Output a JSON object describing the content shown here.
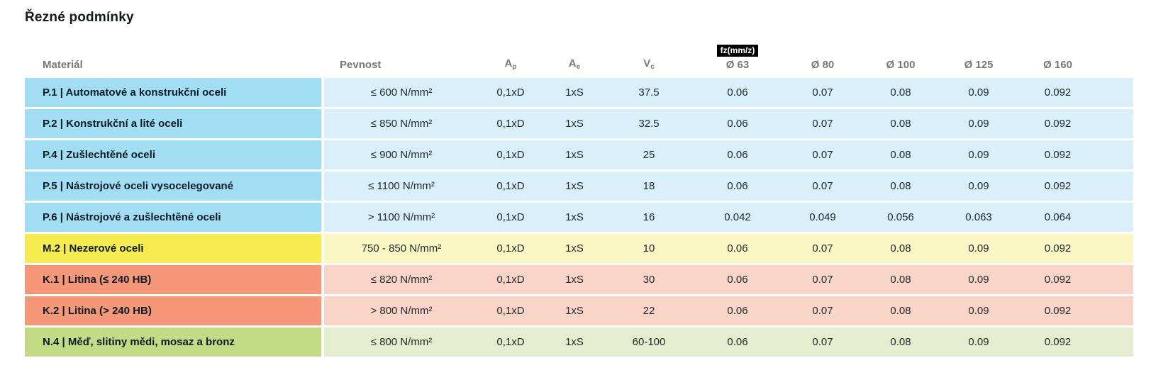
{
  "title": "Řezné podmínky",
  "colors": {
    "steel_label": "#A1DEF4",
    "steel_body": "#D9EFFA",
    "stainless_label": "#F6EC52",
    "stainless_body": "#FBF7C5",
    "cast_iron_label": "#F59779",
    "cast_iron_body": "#F9D5C8",
    "nonferrous_label": "#C1DC85",
    "nonferrous_body": "#E4EDCD",
    "header_text": "#75787B",
    "badge_background": "#000000",
    "badge_text": "#FFFFFF"
  },
  "chart_data": {
    "type": "table",
    "title": "Řezné podmínky",
    "columns": [
      "Materiál",
      "Pevnost",
      "Ap",
      "Ae",
      "Vc",
      "Ø 63",
      "Ø 80",
      "Ø 100",
      "Ø 125",
      "Ø 160"
    ],
    "fz_unit_badge": "fz(mm/z)",
    "header_parts": {
      "ap_base": "A",
      "ap_sub": "p",
      "ae_base": "A",
      "ae_sub": "e",
      "vc_base": "V",
      "vc_sub": "c"
    },
    "rows": [
      {
        "material": "P.1 | Automatové a konstrukční oceli",
        "pevnost": "≤ 600 N/mm²",
        "ap": "0,1xD",
        "ae": "1xS",
        "vc": "37.5",
        "fz": [
          "0.06",
          "0.07",
          "0.08",
          "0.09",
          "0.092"
        ],
        "group": "steel"
      },
      {
        "material": "P.2 | Konstrukční a lité oceli",
        "pevnost": "≤ 850 N/mm²",
        "ap": "0,1xD",
        "ae": "1xS",
        "vc": "32.5",
        "fz": [
          "0.06",
          "0.07",
          "0.08",
          "0.09",
          "0.092"
        ],
        "group": "steel"
      },
      {
        "material": "P.4 | Zušlechtěné oceli",
        "pevnost": "≤ 900 N/mm²",
        "ap": "0,1xD",
        "ae": "1xS",
        "vc": "25",
        "fz": [
          "0.06",
          "0.07",
          "0.08",
          "0.09",
          "0.092"
        ],
        "group": "steel"
      },
      {
        "material": "P.5 | Nástrojové oceli vysocelegované",
        "pevnost": "≤ 1100 N/mm²",
        "ap": "0,1xD",
        "ae": "1xS",
        "vc": "18",
        "fz": [
          "0.06",
          "0.07",
          "0.08",
          "0.09",
          "0.092"
        ],
        "group": "steel"
      },
      {
        "material": "P.6 | Nástrojové a zušlechtěné oceli",
        "pevnost": "> 1100 N/mm²",
        "ap": "0,1xD",
        "ae": "1xS",
        "vc": "16",
        "fz": [
          "0.042",
          "0.049",
          "0.056",
          "0.063",
          "0.064"
        ],
        "group": "steel"
      },
      {
        "material": "M.2 | Nezerové oceli",
        "pevnost": "750 - 850 N/mm²",
        "ap": "0,1xD",
        "ae": "1xS",
        "vc": "10",
        "fz": [
          "0.06",
          "0.07",
          "0.08",
          "0.09",
          "0.092"
        ],
        "group": "stainless"
      },
      {
        "material": "K.1 | Litina (≤ 240 HB)",
        "pevnost": "≤ 820 N/mm²",
        "ap": "0,1xD",
        "ae": "1xS",
        "vc": "30",
        "fz": [
          "0.06",
          "0.07",
          "0.08",
          "0.09",
          "0.092"
        ],
        "group": "castiron"
      },
      {
        "material": "K.2 | Litina (> 240 HB)",
        "pevnost": "> 800 N/mm²",
        "ap": "0,1xD",
        "ae": "1xS",
        "vc": "22",
        "fz": [
          "0.06",
          "0.07",
          "0.08",
          "0.09",
          "0.092"
        ],
        "group": "castiron"
      },
      {
        "material": "N.4 | Měď, slitiny mědi, mosaz a bronz",
        "pevnost": "≤ 800 N/mm²",
        "ap": "0,1xD",
        "ae": "1xS",
        "vc": "60-100",
        "fz": [
          "0.06",
          "0.07",
          "0.08",
          "0.09",
          "0.092"
        ],
        "group": "nonferrous"
      }
    ]
  }
}
